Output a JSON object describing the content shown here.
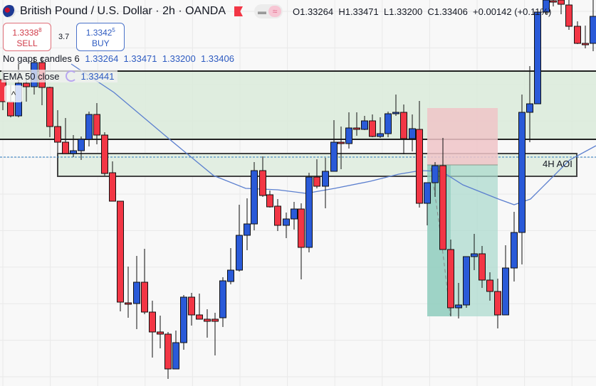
{
  "header": {
    "symbol_title": "British Pound / U.S. Dollar · 2h · OANDA",
    "ohlc": {
      "open": "O1.33264",
      "high": "H1.33471",
      "low": "L1.33200",
      "close": "C1.33406",
      "change": "+0.00142 (+0.11%)"
    },
    "icons": [
      "gbp-usd-flag-icon",
      "bookmark-flag-icon",
      "line-style-icon",
      "wave-icon"
    ]
  },
  "trade": {
    "sell_price": "1.3338",
    "sell_price_sup": "8",
    "sell_label": "SELL",
    "spread": "3.7",
    "buy_price": "1.3342",
    "buy_price_sup": "5",
    "buy_label": "BUY"
  },
  "indicators": [
    {
      "name": "No gaps candles 6",
      "values": "1.33264  1.33471  1.33200  1.33406"
    },
    {
      "name": "EMA 50 close",
      "value": "1.33441"
    }
  ],
  "collapse_glyph": "^",
  "zones": {
    "aoi_label": "4H AOI"
  },
  "colors": {
    "up": "#2a5ad8",
    "down": "#f23645",
    "ema": "#5b7fcf",
    "zone": "#dcebdc",
    "stop": "#f0c4c8",
    "target": "#a8d8cc"
  }
}
